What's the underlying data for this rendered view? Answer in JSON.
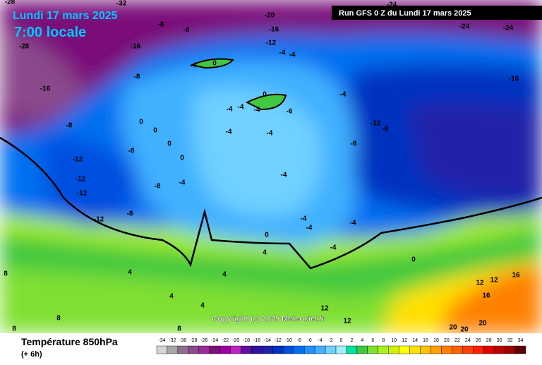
{
  "header": {
    "date": "Lundi 17 mars 2025",
    "time": "7:00 locale",
    "run": "Run GFS 0 Z du Lundi 17 mars 2025"
  },
  "footer": {
    "title": "Température 850hPa",
    "step": "(+ 6h)",
    "copyright": "Copyright (c) 2025 Meteociel.fr"
  },
  "scale": {
    "ticks": [
      -34,
      -32,
      -30,
      -28,
      -26,
      -24,
      -22,
      -20,
      -18,
      -16,
      -14,
      -12,
      -10,
      -8,
      -6,
      -4,
      -2,
      0,
      2,
      4,
      6,
      8,
      10,
      12,
      14,
      16,
      18,
      20,
      22,
      24,
      26,
      28,
      30,
      32,
      34
    ],
    "colors": [
      "#d4d4d4",
      "#a8a8a8",
      "#8c7090",
      "#8a4a8c",
      "#9a2a9a",
      "#7a107a",
      "#a000a0",
      "#c020c0",
      "#6010a0",
      "#3010a0",
      "#2020a8",
      "#0030c0",
      "#0050e0",
      "#0070f0",
      "#2090ff",
      "#40b0ff",
      "#70d0ff",
      "#a0f0ff",
      "#00e0a0",
      "#40c840",
      "#80e030",
      "#a8f020",
      "#d0f000",
      "#ffff00",
      "#ffe000",
      "#ffc000",
      "#ffa000",
      "#ff8000",
      "#ff6000",
      "#ff4000",
      "#ff2000",
      "#e00000",
      "#c00000",
      "#a00000",
      "#600000"
    ]
  },
  "contour_labels": [
    "-28",
    "-32",
    "-20",
    "-24",
    "-24",
    "-24",
    "-8",
    "-8",
    "-16",
    "-28",
    "-16",
    "-12",
    "-4",
    "-4",
    "-4",
    "0",
    "-8",
    "-16",
    "-16",
    "0",
    "-4",
    "-4",
    "-4",
    "-4",
    "-6",
    "-12",
    "-8",
    "-8",
    "0",
    "-4",
    "-4",
    "0",
    "0",
    "-8",
    "-8",
    "0",
    "-12",
    "-4",
    "-12",
    "-4",
    "-8",
    "-12",
    "-8",
    "-12",
    "-4",
    "-4",
    "-4",
    "0",
    "-4",
    "4",
    "0",
    "4",
    "4",
    "8",
    "12",
    "12",
    "16",
    "4",
    "4",
    "12",
    "8",
    "12",
    "8",
    "8",
    "20",
    "20",
    "20",
    "16"
  ]
}
